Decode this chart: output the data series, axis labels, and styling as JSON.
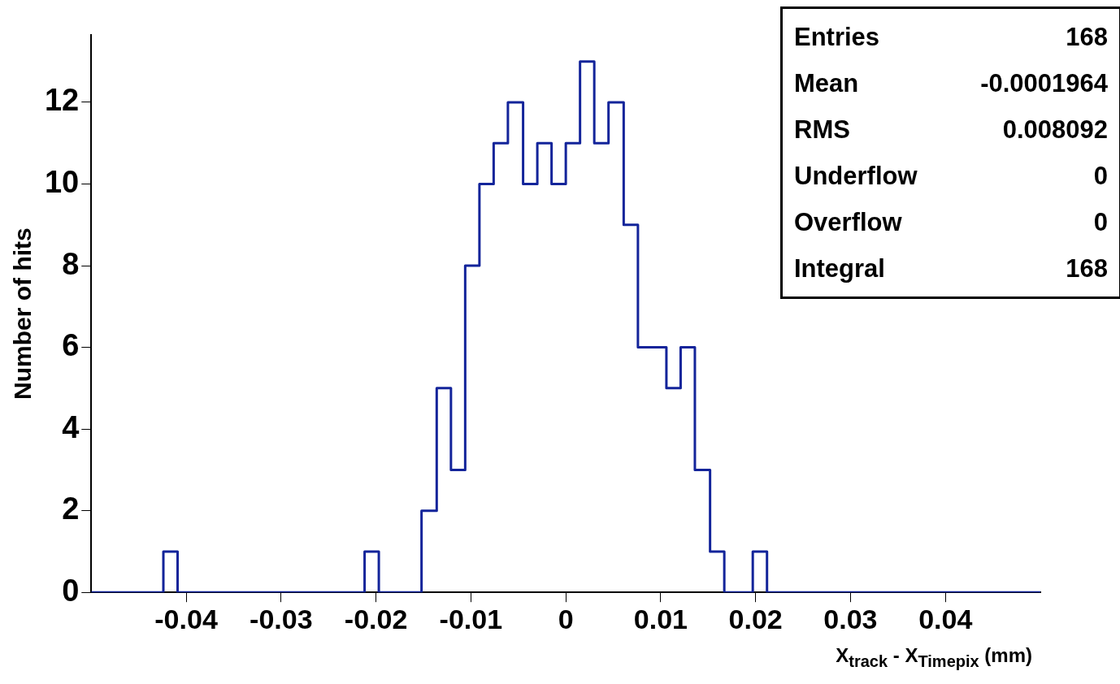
{
  "chart_data": {
    "type": "histogram",
    "xlabel": "X$_{track}$ - X$_{Timepix}$ (mm)",
    "ylabel": "Number of hits",
    "bins": [
      -0.05,
      -0.0485,
      -0.047,
      -0.0455,
      -0.0439,
      -0.0424,
      -0.0409,
      -0.0394,
      -0.0379,
      -0.0364,
      -0.0348,
      -0.0333,
      -0.0318,
      -0.0303,
      -0.0288,
      -0.0273,
      -0.0258,
      -0.0242,
      -0.0227,
      -0.0212,
      -0.0197,
      -0.0182,
      -0.0167,
      -0.0152,
      -0.0136,
      -0.0121,
      -0.0106,
      -0.0091,
      -0.0076,
      -0.0061,
      -0.0045,
      -0.003,
      -0.0015,
      0,
      0.0015,
      0.003,
      0.0045,
      0.0061,
      0.0076,
      0.0091,
      0.0106,
      0.0121,
      0.0136,
      0.0152,
      0.0167,
      0.0182,
      0.0197,
      0.0212,
      0.0227,
      0.0242,
      0.0258,
      0.0273,
      0.0288,
      0.0303,
      0.0318,
      0.0333,
      0.0348,
      0.0364,
      0.0379,
      0.0394,
      0.0409,
      0.0424,
      0.0439,
      0.0455,
      0.047,
      0.0485,
      0.05
    ],
    "values": [
      0,
      0,
      0,
      0,
      0,
      1,
      0,
      0,
      0,
      0,
      0,
      0,
      0,
      0,
      0,
      0,
      0,
      0,
      0,
      1,
      0,
      0,
      0,
      2,
      5,
      3,
      8,
      10,
      11,
      12,
      10,
      11,
      10,
      11,
      13,
      11,
      12,
      9,
      6,
      6,
      5,
      6,
      3,
      1,
      0,
      0,
      1,
      0,
      0,
      0,
      0,
      0,
      0,
      0,
      0,
      0,
      0,
      0,
      0,
      0,
      0,
      0,
      0,
      0,
      0,
      0
    ],
    "color": "#13249a",
    "xlim": [
      -0.05,
      0.05
    ],
    "xticks": [
      -0.04,
      -0.03,
      -0.02,
      -0.01,
      0,
      0.01,
      0.02,
      0.03,
      0.04
    ],
    "ylim": [
      0,
      13.65
    ],
    "yticks": [
      0,
      2,
      4,
      6,
      8,
      10,
      12
    ],
    "grid": false,
    "legend": false,
    "annotations": [
      "Entries",
      "168",
      "Mean",
      "-0.0001964",
      "RMS",
      "0.008092",
      "Underflow",
      "0",
      "Overflow",
      "0",
      "Integral",
      "168"
    ]
  }
}
